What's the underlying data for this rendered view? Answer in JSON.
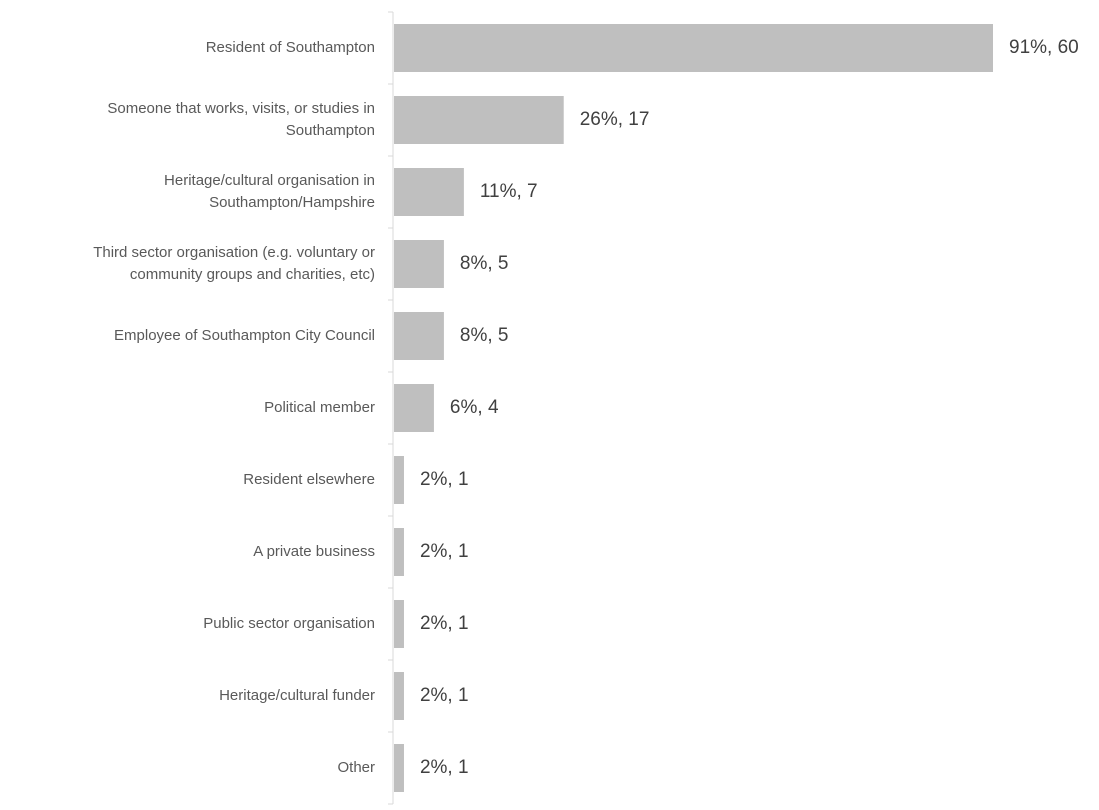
{
  "chart_data": {
    "type": "bar",
    "orientation": "horizontal",
    "categories": [
      [
        "Resident of Southampton"
      ],
      [
        "Someone that works, visits, or studies in",
        "Southampton"
      ],
      [
        "Heritage/cultural organisation in",
        "Southampton/Hampshire"
      ],
      [
        "Third sector organisation (e.g. voluntary or",
        "community groups and charities, etc)"
      ],
      [
        "Employee of Southampton City Council"
      ],
      [
        "Political member"
      ],
      [
        "Resident elsewhere"
      ],
      [
        "A private business"
      ],
      [
        "Public sector organisation"
      ],
      [
        "Heritage/cultural funder"
      ],
      [
        "Other"
      ]
    ],
    "percent": [
      91,
      26,
      11,
      8,
      8,
      6,
      2,
      2,
      2,
      2,
      2
    ],
    "count": [
      60,
      17,
      7,
      5,
      5,
      4,
      1,
      1,
      1,
      1,
      1
    ],
    "data_labels": [
      "91%, 60",
      "26%, 17",
      "11%, 7",
      "8%, 5",
      "8%, 5",
      "6%, 4",
      "2%, 1",
      "2%, 1",
      "2%, 1",
      "2%, 1",
      "2%, 1"
    ],
    "xlim": [
      0,
      60
    ],
    "bar_color": "#bfbfbf",
    "axis_color": "#d9d9d9",
    "title": "",
    "xlabel": "",
    "ylabel": "",
    "grid": false,
    "legend": "none"
  }
}
